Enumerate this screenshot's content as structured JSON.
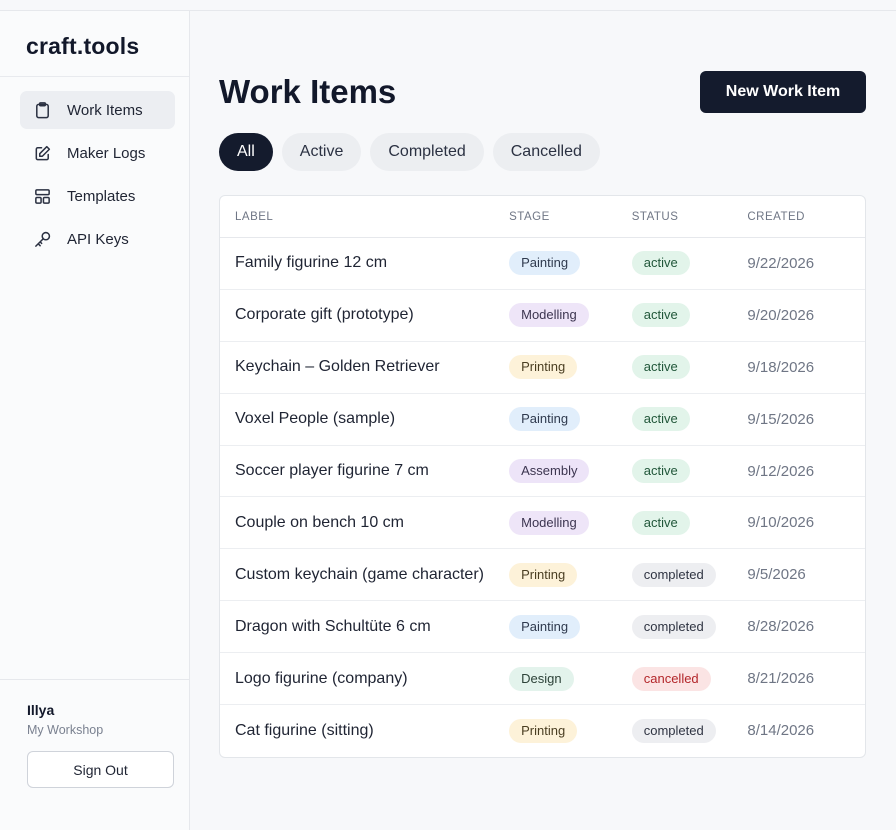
{
  "brand": "craft.tools",
  "sidebar": {
    "items": [
      {
        "label": "Work Items",
        "icon": "clipboard-icon",
        "active": true
      },
      {
        "label": "Maker Logs",
        "icon": "edit-icon",
        "active": false
      },
      {
        "label": "Templates",
        "icon": "layout-icon",
        "active": false
      },
      {
        "label": "API Keys",
        "icon": "key-icon",
        "active": false
      }
    ],
    "user": {
      "name": "Illya",
      "workspace": "My Workshop"
    },
    "sign_out_label": "Sign Out"
  },
  "main": {
    "title": "Work Items",
    "new_button_label": "New Work Item",
    "filters": [
      {
        "label": "All",
        "active": true
      },
      {
        "label": "Active",
        "active": false
      },
      {
        "label": "Completed",
        "active": false
      },
      {
        "label": "Cancelled",
        "active": false
      }
    ],
    "table": {
      "columns": [
        "LABEL",
        "STAGE",
        "STATUS",
        "CREATED"
      ],
      "rows": [
        {
          "label": "Family figurine 12 cm",
          "stage": "Painting",
          "status": "active",
          "created": "9/22/2026"
        },
        {
          "label": "Corporate gift (prototype)",
          "stage": "Modelling",
          "status": "active",
          "created": "9/20/2026"
        },
        {
          "label": "Keychain – Golden Retriever",
          "stage": "Printing",
          "status": "active",
          "created": "9/18/2026"
        },
        {
          "label": "Voxel People (sample)",
          "stage": "Painting",
          "status": "active",
          "created": "9/15/2026"
        },
        {
          "label": "Soccer player figurine 7 cm",
          "stage": "Assembly",
          "status": "active",
          "created": "9/12/2026"
        },
        {
          "label": "Couple on bench 10 cm",
          "stage": "Modelling",
          "status": "active",
          "created": "9/10/2026"
        },
        {
          "label": "Custom keychain (game character)",
          "stage": "Printing",
          "status": "completed",
          "created": "9/5/2026"
        },
        {
          "label": "Dragon with Schultüte 6 cm",
          "stage": "Painting",
          "status": "completed",
          "created": "8/28/2026"
        },
        {
          "label": "Logo figurine (company)",
          "stage": "Design",
          "status": "cancelled",
          "created": "8/21/2026"
        },
        {
          "label": "Cat figurine (sitting)",
          "stage": "Printing",
          "status": "completed",
          "created": "8/14/2026"
        }
      ]
    }
  },
  "colors": {
    "primary": "#141b2d",
    "active_status": "#e2f4ea",
    "completed_status": "#edeef1",
    "cancelled_status": "#fbe4e4"
  }
}
